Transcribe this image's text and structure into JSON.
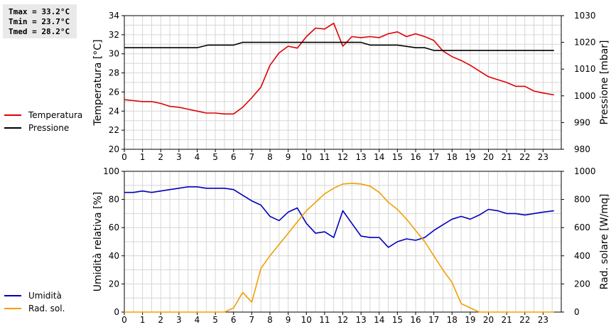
{
  "stats": {
    "tmax": "Tmax = 33.2°C",
    "tmin": "Tmin = 23.7°C",
    "tmed": "Tmed = 28.2°C"
  },
  "chart_data": [
    {
      "type": "line",
      "ylabel": "Temperatura [°C]",
      "y2label": "Pressione [mbar]",
      "xlim": [
        0,
        24
      ],
      "ylim": [
        20,
        34
      ],
      "y2lim": [
        980,
        1030
      ],
      "x_ticks": [
        0,
        1,
        2,
        3,
        4,
        5,
        6,
        7,
        8,
        9,
        10,
        11,
        12,
        13,
        14,
        15,
        16,
        17,
        18,
        19,
        20,
        21,
        22,
        23
      ],
      "y_ticks": [
        20,
        22,
        24,
        26,
        28,
        30,
        32,
        34
      ],
      "y2_ticks": [
        980,
        990,
        1000,
        1010,
        1020,
        1030
      ],
      "grid": true,
      "legend": "left",
      "series": [
        {
          "name": "Temperatura",
          "axis": "left",
          "color": "#dd0000",
          "x": [
            0,
            0.5,
            1,
            1.5,
            2,
            2.5,
            3,
            3.5,
            4,
            4.5,
            5,
            5.5,
            6,
            6.5,
            7,
            7.5,
            8,
            8.5,
            9,
            9.5,
            10,
            10.5,
            11,
            11.5,
            12,
            12.5,
            13,
            13.5,
            14,
            14.5,
            15,
            15.5,
            16,
            16.5,
            17,
            17.5,
            18,
            18.5,
            19,
            19.5,
            20,
            20.5,
            21,
            21.5,
            22,
            22.5,
            23,
            23.6
          ],
          "y": [
            25.2,
            25.1,
            25.0,
            25.0,
            24.8,
            24.5,
            24.4,
            24.2,
            24.0,
            23.8,
            23.8,
            23.7,
            23.7,
            24.4,
            25.4,
            26.5,
            28.8,
            30.1,
            30.8,
            30.6,
            31.8,
            32.7,
            32.6,
            33.2,
            30.8,
            31.8,
            31.7,
            31.8,
            31.7,
            32.1,
            32.3,
            31.8,
            32.1,
            31.8,
            31.4,
            30.3,
            29.7,
            29.3,
            28.8,
            28.2,
            27.6,
            27.3,
            27.0,
            26.6,
            26.6,
            26.1,
            25.9,
            25.7
          ]
        },
        {
          "name": "Pressione",
          "axis": "right",
          "color": "#000000",
          "x": [
            0,
            4,
            4.6,
            6,
            6.5,
            7,
            13,
            13.5,
            15,
            16,
            16.5,
            17,
            23.6
          ],
          "y": [
            1018,
            1018,
            1019,
            1019,
            1020,
            1020,
            1020,
            1019,
            1019,
            1018,
            1018,
            1017,
            1017
          ]
        }
      ]
    },
    {
      "type": "line",
      "ylabel": "Umidità relativa [%]",
      "y2label": "Rad. solare [W/mq]",
      "xlim": [
        0,
        24
      ],
      "ylim": [
        0,
        100
      ],
      "y2lim": [
        0,
        1000
      ],
      "x_ticks": [
        0,
        1,
        2,
        3,
        4,
        5,
        6,
        7,
        8,
        9,
        10,
        11,
        12,
        13,
        14,
        15,
        16,
        17,
        18,
        19,
        20,
        21,
        22,
        23
      ],
      "y_ticks": [
        0,
        20,
        40,
        60,
        80,
        100
      ],
      "y2_ticks": [
        0,
        200,
        400,
        600,
        800,
        1000
      ],
      "grid": true,
      "legend": "left",
      "series": [
        {
          "name": "Umidità",
          "axis": "left",
          "color": "#0000bb",
          "x": [
            0,
            0.5,
            1,
            1.5,
            2,
            2.5,
            3,
            3.5,
            4,
            4.5,
            5,
            5.5,
            6,
            6.5,
            7,
            7.5,
            8,
            8.5,
            9,
            9.5,
            10,
            10.5,
            11,
            11.5,
            12,
            12.5,
            13,
            13.5,
            14,
            14.5,
            15,
            15.5,
            16,
            16.5,
            17,
            17.5,
            18,
            18.5,
            19,
            19.5,
            20,
            20.5,
            21,
            21.5,
            22,
            22.5,
            23,
            23.6
          ],
          "y": [
            85,
            85,
            86,
            85,
            86,
            87,
            88,
            89,
            89,
            88,
            88,
            88,
            87,
            83,
            79,
            76,
            68,
            65,
            71,
            74,
            63,
            56,
            57,
            53,
            72,
            63,
            54,
            53,
            53,
            46,
            50,
            52,
            51,
            53,
            58,
            62,
            66,
            68,
            66,
            69,
            73,
            72,
            70,
            70,
            69,
            70,
            71,
            72
          ]
        },
        {
          "name": "Rad. sol.",
          "axis": "right",
          "color": "#f0a000",
          "x": [
            0,
            1,
            2,
            3,
            4,
            5,
            5.5,
            6,
            6.5,
            7,
            7.5,
            8,
            8.5,
            9,
            9.5,
            10,
            10.5,
            11,
            11.5,
            12,
            12.5,
            13,
            13.5,
            14,
            14.5,
            15,
            15.5,
            16,
            16.5,
            17,
            17.5,
            18,
            18.5,
            19,
            19.5,
            20,
            21,
            22,
            23,
            23.6
          ],
          "y": [
            0,
            0,
            0,
            0,
            0,
            0,
            0,
            30,
            140,
            70,
            310,
            400,
            480,
            560,
            640,
            720,
            780,
            840,
            880,
            910,
            915,
            910,
            895,
            850,
            780,
            730,
            660,
            580,
            500,
            400,
            300,
            210,
            60,
            30,
            0,
            0,
            0,
            0,
            0,
            0
          ]
        }
      ]
    }
  ]
}
